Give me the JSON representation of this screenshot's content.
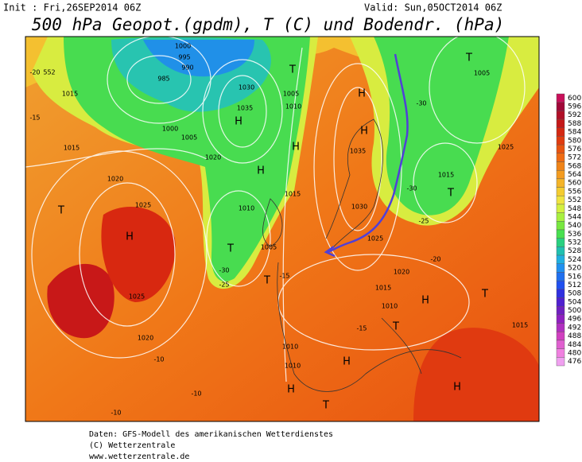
{
  "header": {
    "init": "Init : Fri,26SEP2014 06Z",
    "valid": "Valid: Sun,05OCT2014 06Z",
    "title": "500 hPa Geopot.(gpdm), T (C) und Bodendr. (hPa)"
  },
  "colorbar": {
    "levels": [
      600,
      596,
      592,
      588,
      584,
      580,
      576,
      572,
      568,
      564,
      560,
      556,
      552,
      548,
      544,
      540,
      536,
      532,
      528,
      524,
      520,
      516,
      512,
      508,
      504,
      500,
      496,
      492,
      488,
      484,
      480,
      476
    ],
    "colors": [
      "#c8105a",
      "#a00838",
      "#b01028",
      "#c41818",
      "#d42812",
      "#e03c10",
      "#e85410",
      "#f06c14",
      "#f08418",
      "#f49c20",
      "#f4b428",
      "#f4cc30",
      "#f0e440",
      "#d4f040",
      "#a8f040",
      "#78e840",
      "#48e050",
      "#28d080",
      "#20c0b0",
      "#20b0e0",
      "#2090f0",
      "#2070f0",
      "#2050f0",
      "#3030e0",
      "#5020d0",
      "#7020c0",
      "#9020c0",
      "#b030c0",
      "#d040c0",
      "#e060d0",
      "#f080e0",
      "#f0a0f0"
    ]
  },
  "map": {
    "labels": [
      "H",
      "1025",
      "1025",
      "T",
      "1020",
      "1020",
      "1015",
      "1015",
      "H",
      "1035",
      "1030",
      "T",
      "1010",
      "1005",
      "H",
      "T",
      "H",
      "H",
      "1035",
      "1030",
      "1025",
      "1020",
      "1015",
      "1010",
      "T",
      "1005",
      "1025",
      "1015",
      "T",
      "H",
      "T",
      "1015",
      "T",
      "H",
      "H",
      "T",
      "H",
      "T",
      "1005",
      "1010",
      "1015",
      "1010",
      "1010",
      "1000",
      "995",
      "990",
      "985",
      "1000",
      "1005",
      "1020",
      "H",
      "-20",
      "552",
      "-30",
      "-30",
      "-25",
      "-20",
      "-15",
      "-15",
      "-10",
      "-10",
      "-10",
      "-15",
      "-25",
      "-30"
    ]
  },
  "footer": {
    "line1": "Daten: GFS-Modell des amerikanischen Wetterdienstes",
    "line2": "(C) Wetterzentrale",
    "line3": "www.wetterzentrale.de"
  }
}
